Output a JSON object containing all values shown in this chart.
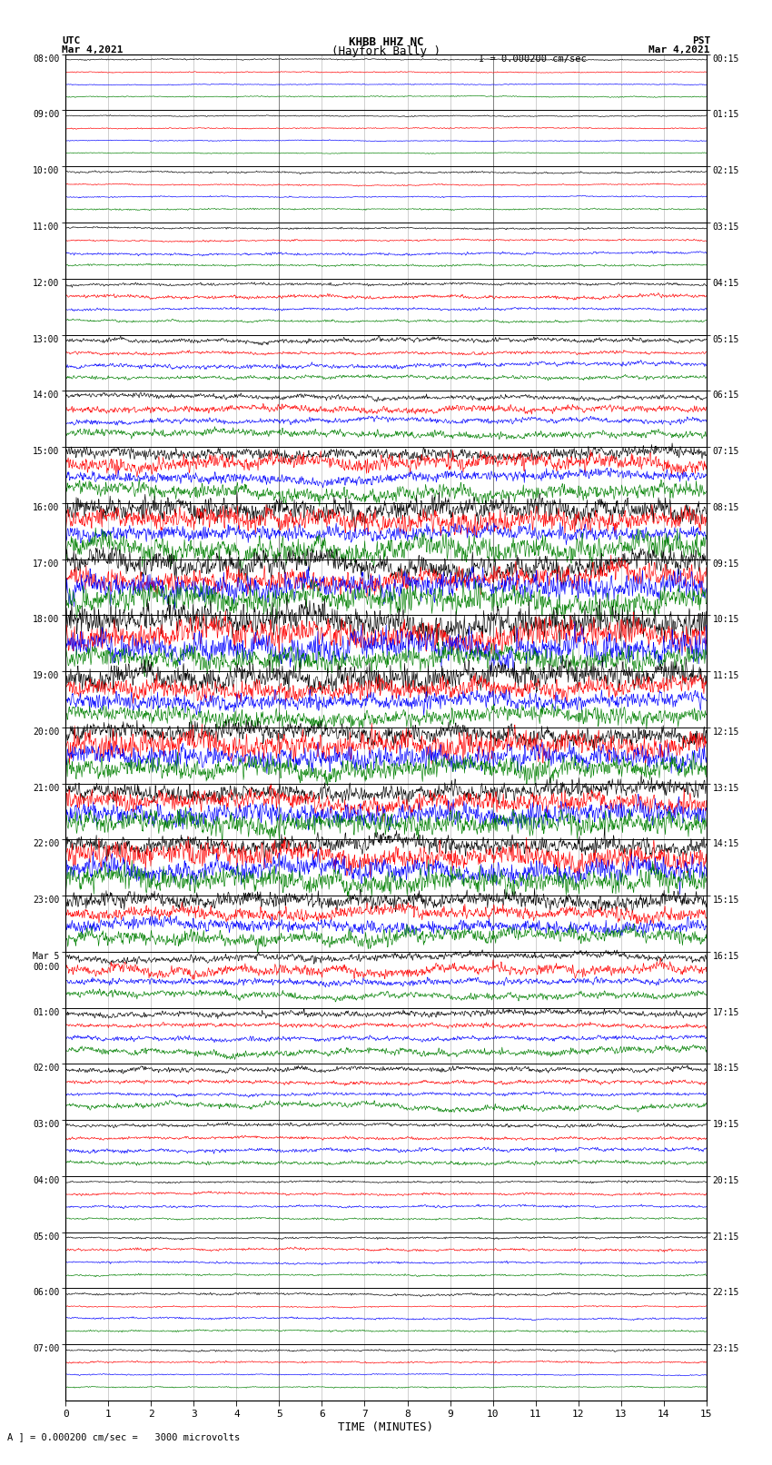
{
  "title_line1": "KHBB HHZ NC",
  "title_line2": "(Hayfork Bally )",
  "scale_label": "I = 0.000200 cm/sec",
  "left_header": "UTC",
  "left_date": "Mar 4,2021",
  "right_header": "PST",
  "right_date": "Mar 4,2021",
  "bottom_xlabel": "TIME (MINUTES)",
  "bottom_note": "A ] = 0.000200 cm/sec =   3000 microvolts",
  "utc_times_show": [
    "08:00",
    "09:00",
    "10:00",
    "11:00",
    "12:00",
    "13:00",
    "14:00",
    "15:00",
    "16:00",
    "17:00",
    "18:00",
    "19:00",
    "20:00",
    "21:00",
    "22:00",
    "23:00",
    "Mar 5\n00:00",
    "01:00",
    "02:00",
    "03:00",
    "04:00",
    "05:00",
    "06:00",
    "07:00"
  ],
  "pst_times_show": [
    "00:15",
    "01:15",
    "02:15",
    "03:15",
    "04:15",
    "05:15",
    "06:15",
    "07:15",
    "08:15",
    "09:15",
    "10:15",
    "11:15",
    "12:15",
    "13:15",
    "14:15",
    "15:15",
    "16:15",
    "17:15",
    "18:15",
    "19:15",
    "20:15",
    "21:15",
    "22:15",
    "23:15"
  ],
  "n_hours": 24,
  "n_traces_per_hour": 4,
  "colors": [
    "black",
    "red",
    "blue",
    "green"
  ],
  "bg_color": "white",
  "seed": 12345,
  "amplitude_profile": [
    0.06,
    0.06,
    0.08,
    0.12,
    0.16,
    0.22,
    0.35,
    0.55,
    0.8,
    1.0,
    1.0,
    0.95,
    0.9,
    0.85,
    0.8,
    0.7,
    0.5,
    0.35,
    0.25,
    0.18,
    0.14,
    0.12,
    0.1,
    0.09
  ]
}
